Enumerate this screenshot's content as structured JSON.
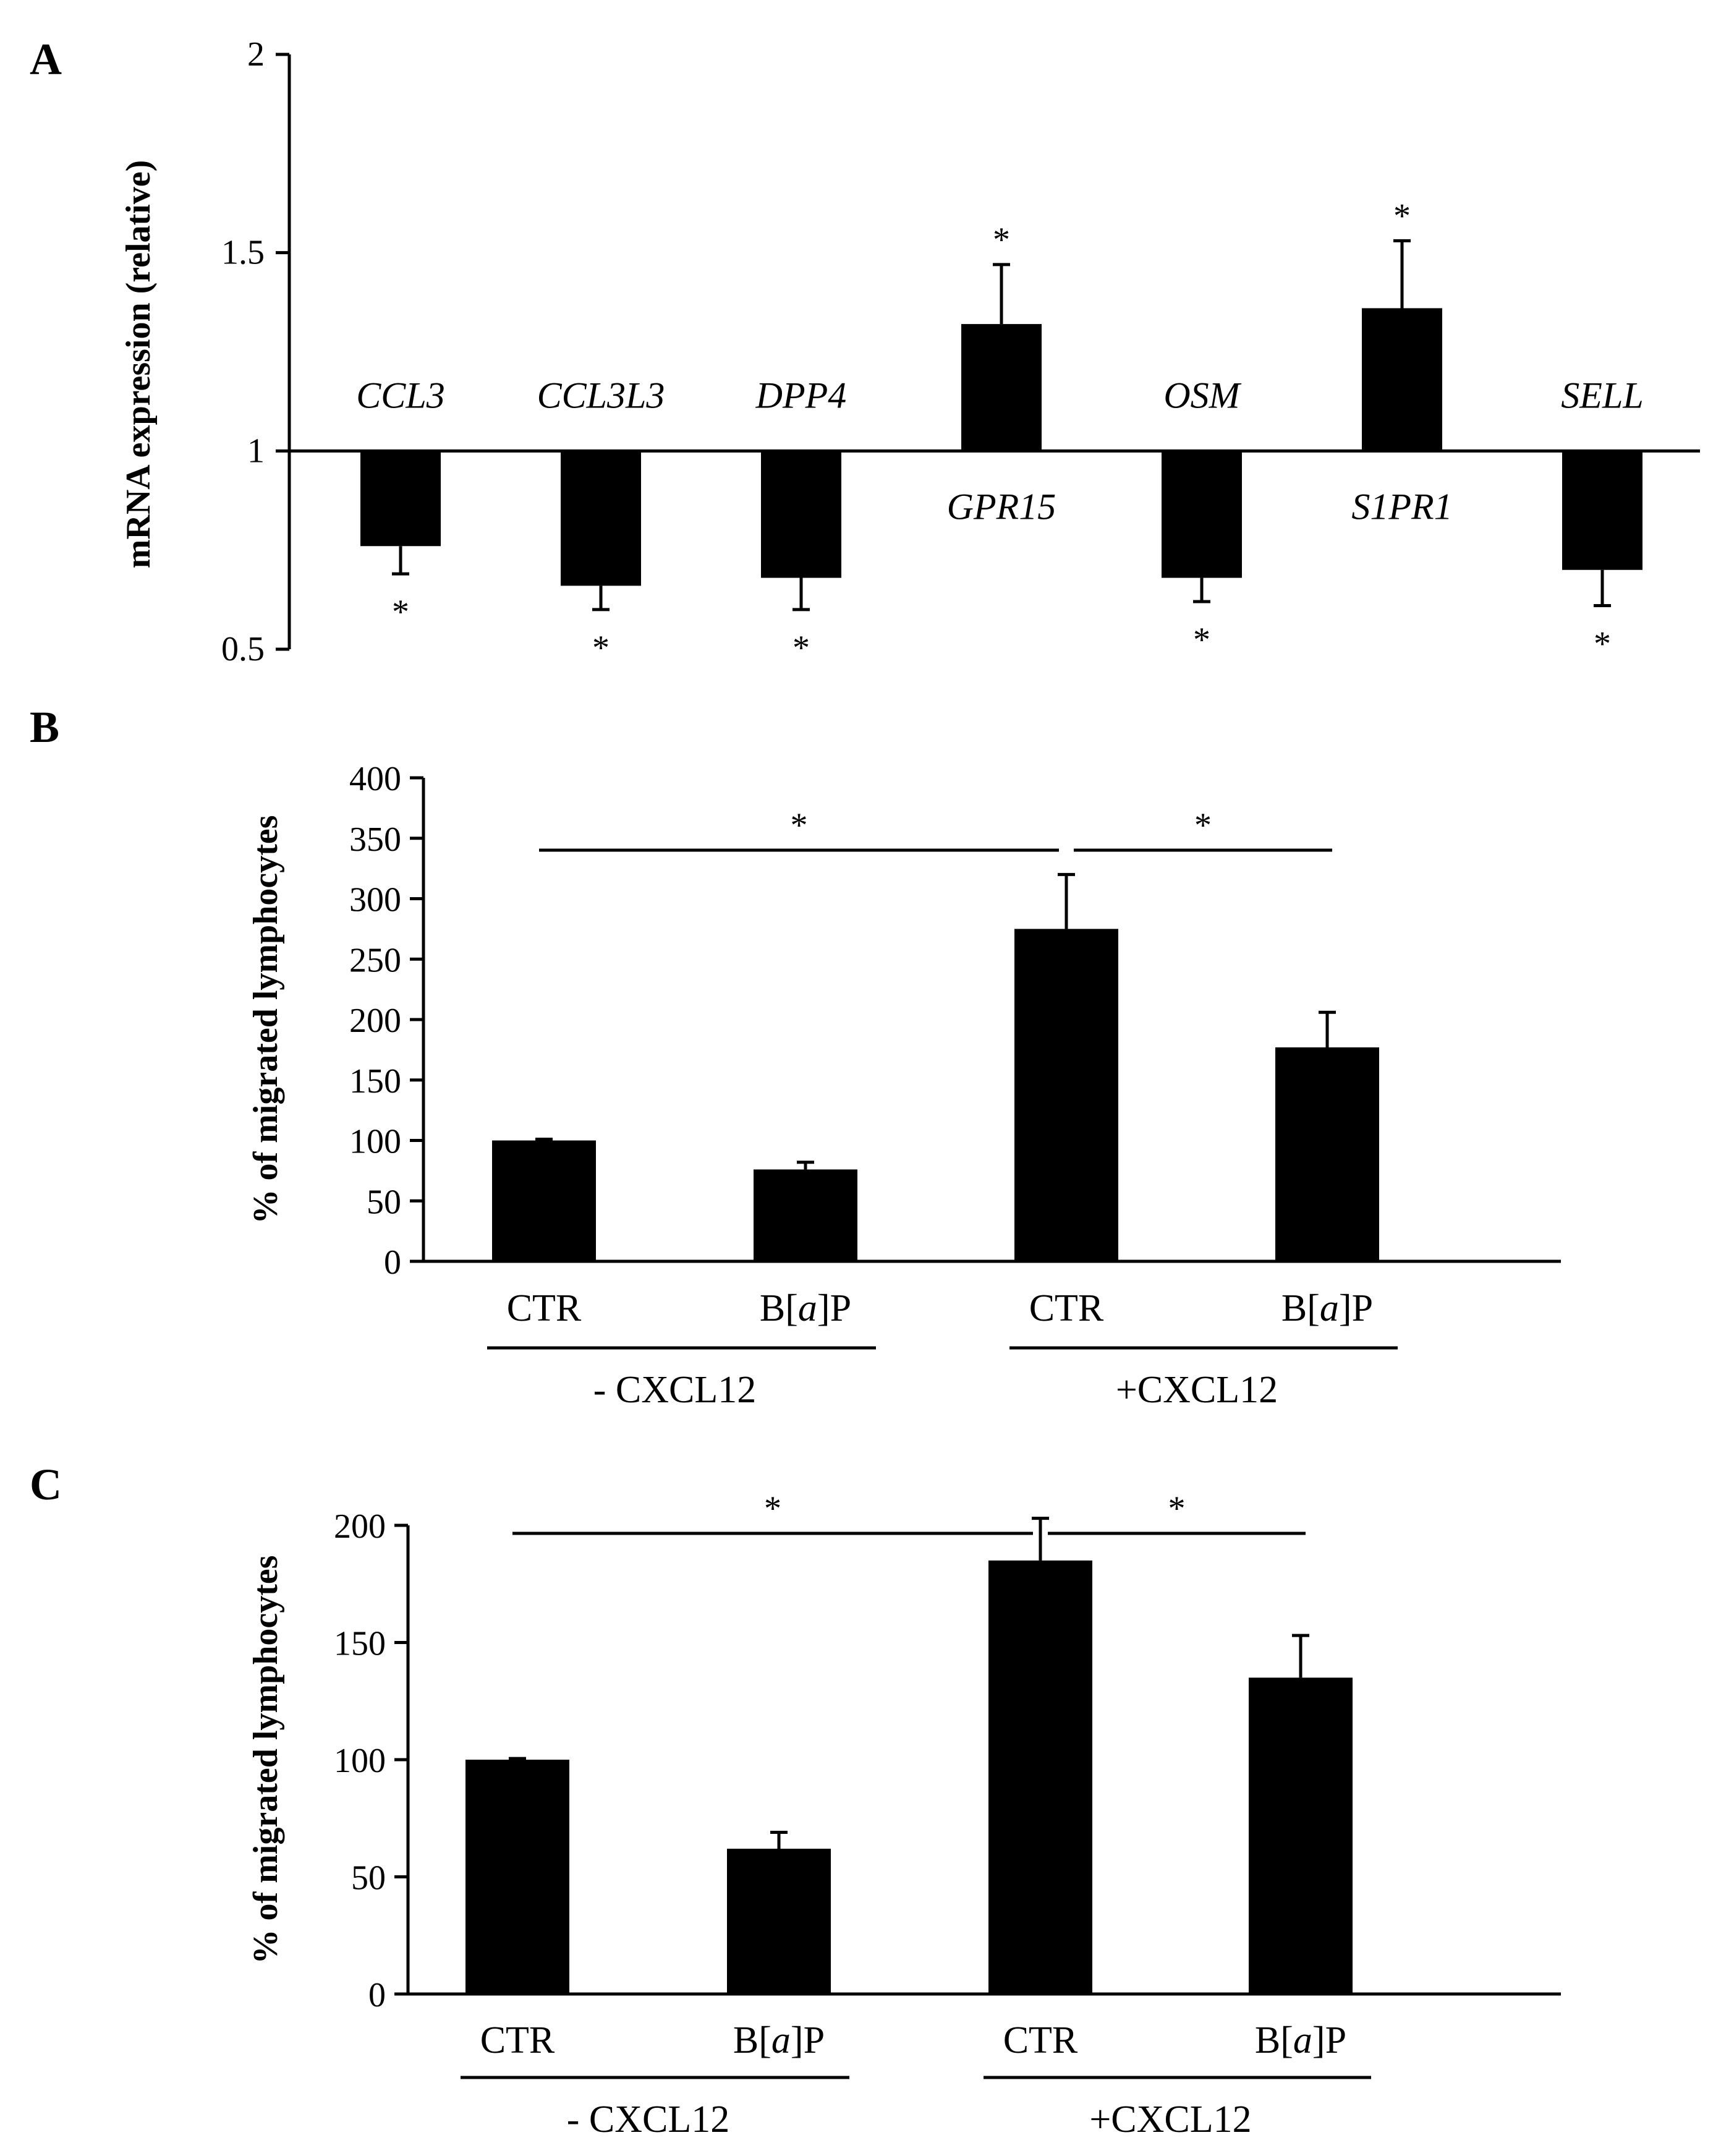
{
  "figure": {
    "panels": [
      "A",
      "B",
      "C"
    ]
  },
  "colors": {
    "bar": "#000000",
    "axis": "#000000",
    "background": "#ffffff"
  },
  "chart_data": [
    {
      "panel": "A",
      "type": "bar",
      "title": "",
      "xlabel": "",
      "ylabel": "mRNA expression (relative)",
      "ylim": [
        0.5,
        2
      ],
      "baseline": 1,
      "yticks": [
        "0.5",
        "1",
        "1.5",
        "2"
      ],
      "ytick_values": [
        0.5,
        1,
        1.5,
        2
      ],
      "categories": [
        "CCL3",
        "CCL3L3",
        "DPP4",
        "GPR15",
        "OSM",
        "S1PR1",
        "SELL"
      ],
      "values": [
        0.76,
        0.66,
        0.68,
        1.32,
        0.68,
        1.36,
        0.7
      ],
      "errors": [
        0.07,
        0.06,
        0.08,
        0.15,
        0.06,
        0.17,
        0.09
      ],
      "significance": [
        "*",
        "*",
        "*",
        "*",
        "*",
        "*",
        "*"
      ],
      "grid": false
    },
    {
      "panel": "B",
      "type": "bar",
      "title": "",
      "ylabel": "% of migrated lymphocytes",
      "ylim": [
        0,
        400
      ],
      "yticks": [
        "0",
        "50",
        "100",
        "150",
        "200",
        "250",
        "300",
        "350",
        "400"
      ],
      "ytick_values": [
        0,
        50,
        100,
        150,
        200,
        250,
        300,
        350,
        400
      ],
      "categories": [
        "CTR",
        "B[a]P",
        "CTR",
        "B[a]P"
      ],
      "category_parts": [
        [
          "CTR"
        ],
        [
          "B[",
          "a",
          "]P"
        ],
        [
          "CTR"
        ],
        [
          "B[",
          "a",
          "]P"
        ]
      ],
      "values": [
        100,
        76,
        275,
        177
      ],
      "errors": [
        1,
        6,
        45,
        29
      ],
      "groups": [
        "- CXCL12",
        "+CXCL12"
      ],
      "significance": [
        {
          "from": 0,
          "to": 2,
          "label": "*"
        },
        {
          "from": 2,
          "to": 3,
          "label": "*"
        }
      ],
      "grid": false
    },
    {
      "panel": "C",
      "type": "bar",
      "title": "",
      "ylabel": "% of migrated lymphocytes",
      "ylim": [
        0,
        200
      ],
      "yticks": [
        "0",
        "50",
        "100",
        "150",
        "200"
      ],
      "ytick_values": [
        0,
        50,
        100,
        150,
        200
      ],
      "categories": [
        "CTR",
        "B[a]P",
        "CTR",
        "B[a]P"
      ],
      "category_parts": [
        [
          "CTR"
        ],
        [
          "B[",
          "a",
          "]P"
        ],
        [
          "CTR"
        ],
        [
          "B[",
          "a",
          "]P"
        ]
      ],
      "values": [
        100,
        62,
        185,
        135
      ],
      "errors": [
        0.5,
        7,
        18,
        18
      ],
      "groups": [
        "- CXCL12",
        "+CXCL12"
      ],
      "significance": [
        {
          "from": 0,
          "to": 2,
          "label": "*"
        },
        {
          "from": 2,
          "to": 3,
          "label": "*"
        }
      ],
      "grid": false
    }
  ]
}
